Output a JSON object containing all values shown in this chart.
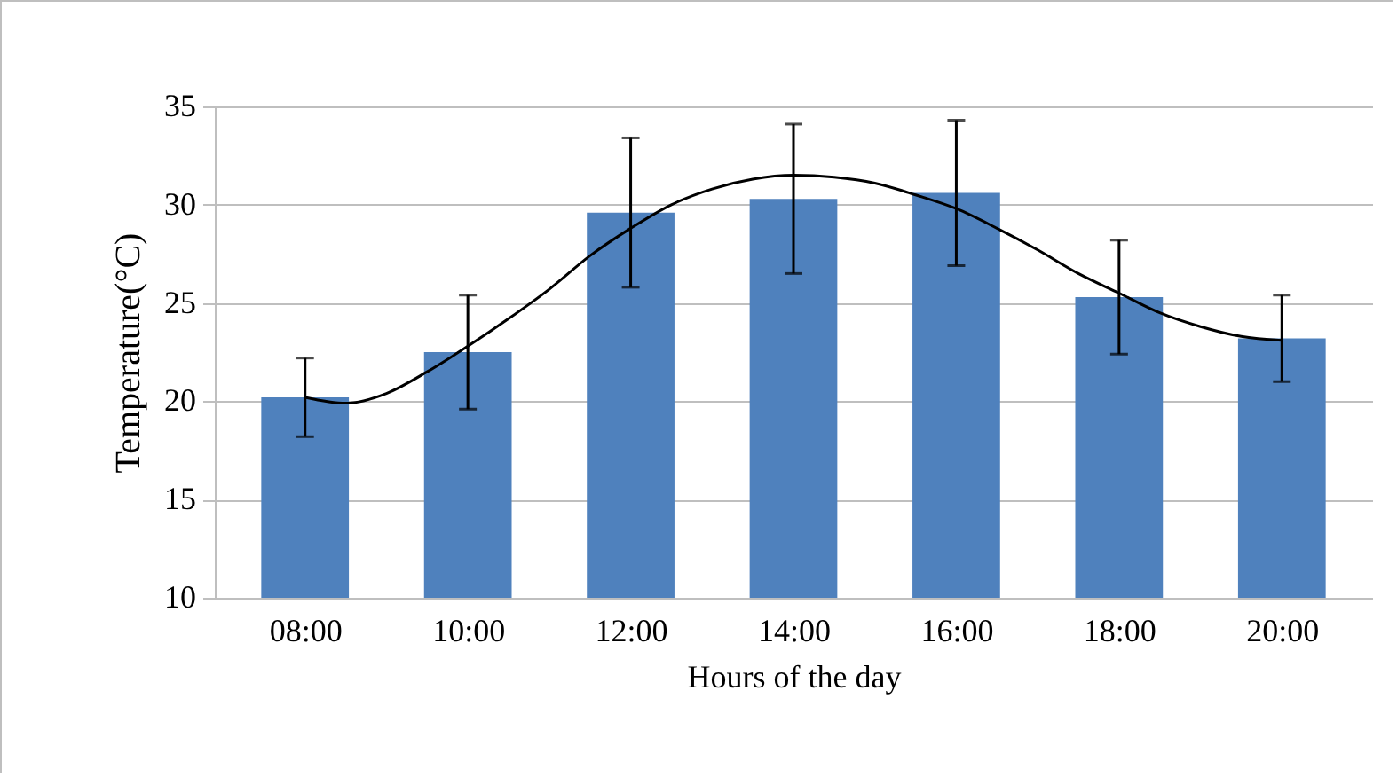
{
  "chart_data": {
    "type": "bar",
    "xlabel": "Hours of the day",
    "ylabel": "Temperature(°C)",
    "x": [
      8,
      10,
      12,
      14,
      16,
      18,
      20
    ],
    "xlim": [
      7,
      21
    ],
    "xticks": [
      {
        "value": 8,
        "label": "08:00"
      },
      {
        "value": 10,
        "label": "10:00"
      },
      {
        "value": 12,
        "label": "12:00"
      },
      {
        "value": 14,
        "label": "14:00"
      },
      {
        "value": 16,
        "label": "16:00"
      },
      {
        "value": 18,
        "label": "18:00"
      },
      {
        "value": 20,
        "label": "20:00"
      }
    ],
    "ylim": [
      10,
      35
    ],
    "yticks": [
      10,
      15,
      20,
      25,
      30,
      35
    ],
    "grid": "y",
    "series": [
      {
        "color": "#4f81bd",
        "values": [
          20.2,
          22.5,
          29.6,
          30.3,
          30.6,
          25.3,
          23.2
        ],
        "errors": [
          2.0,
          2.9,
          3.8,
          3.8,
          3.7,
          2.9,
          2.2
        ]
      },
      {
        "type": "line",
        "color": "#000000",
        "x": [
          8,
          8.5,
          9,
          9.5,
          10,
          10.5,
          11,
          11.5,
          12,
          12.5,
          13,
          13.5,
          14,
          14.5,
          15,
          15.5,
          16,
          16.5,
          17,
          17.5,
          18,
          18.5,
          19,
          19.5,
          20
        ],
        "values": [
          20.2,
          19.9,
          20.4,
          21.5,
          22.8,
          24.2,
          25.7,
          27.4,
          28.8,
          30.0,
          30.8,
          31.3,
          31.5,
          31.4,
          31.1,
          30.5,
          29.8,
          28.8,
          27.7,
          26.5,
          25.5,
          24.5,
          23.8,
          23.3,
          23.1
        ]
      }
    ]
  }
}
